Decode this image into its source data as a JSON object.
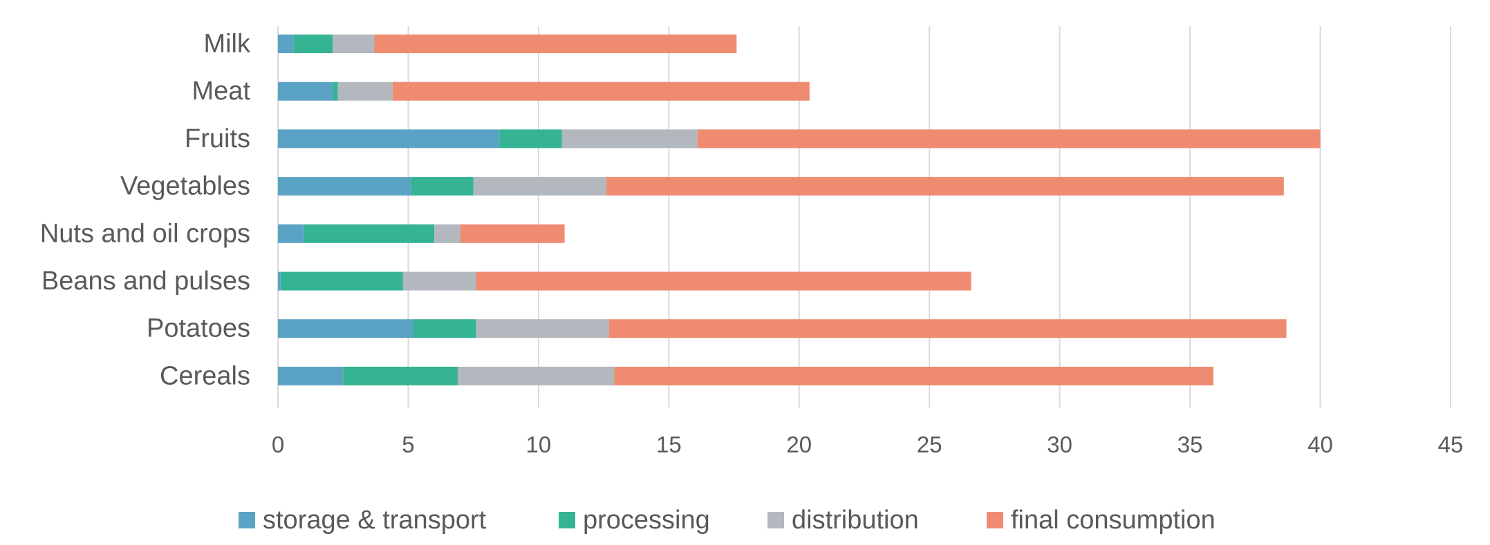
{
  "colors": {
    "storage_transport": "#5ba3c4",
    "processing": "#35b494",
    "distribution": "#b2b8be",
    "final_consumption": "#ef8b70",
    "text": "#595959",
    "grid": "#d9d9d9"
  },
  "chart_data": {
    "type": "bar",
    "orientation": "horizontal",
    "stacked": true,
    "title": "",
    "xlabel": "",
    "ylabel": "",
    "xlim": [
      0,
      45
    ],
    "xticks": [
      0,
      5,
      10,
      15,
      20,
      25,
      30,
      35,
      40,
      45
    ],
    "grid": "vertical",
    "legend_position": "bottom",
    "categories": [
      "Milk",
      "Meat",
      "Fruits",
      "Vegetables",
      "Nuts and oil crops",
      "Beans and pulses",
      "Potatoes",
      "Cereals"
    ],
    "series": [
      {
        "name": "storage & transport",
        "color": "#5ba3c4",
        "values": [
          0.6,
          2.1,
          8.5,
          5.1,
          1.0,
          0.1,
          5.2,
          2.5
        ]
      },
      {
        "name": "processing",
        "color": "#35b494",
        "values": [
          1.5,
          0.2,
          2.4,
          2.4,
          5.0,
          4.7,
          2.4,
          4.4
        ]
      },
      {
        "name": "distribution",
        "color": "#b2b8be",
        "values": [
          1.6,
          2.1,
          5.2,
          5.1,
          1.0,
          2.8,
          5.1,
          6.0
        ]
      },
      {
        "name": "final consumption",
        "color": "#ef8b70",
        "values": [
          13.9,
          16.0,
          23.9,
          26.0,
          4.0,
          19.0,
          26.0,
          23.0
        ]
      }
    ]
  }
}
